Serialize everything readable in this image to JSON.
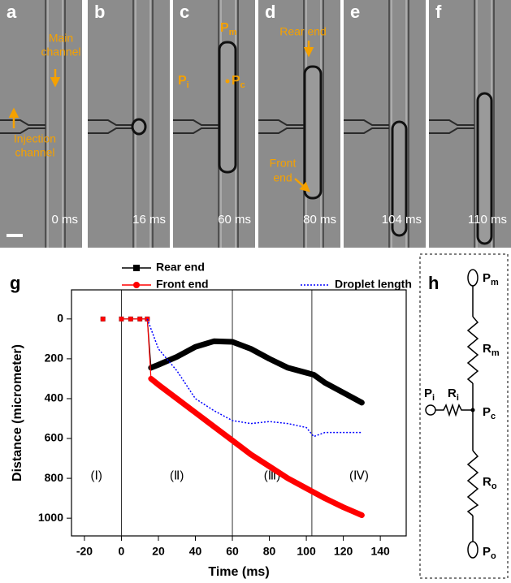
{
  "panels": [
    {
      "letter": "a",
      "time": "0 ms",
      "annotations": [
        [
          "Main",
          "channel"
        ],
        [
          "Injection",
          "channel"
        ]
      ]
    },
    {
      "letter": "b",
      "time": "16 ms"
    },
    {
      "letter": "c",
      "time": "60 ms",
      "labels": [
        {
          "main": "P",
          "sub": "m"
        },
        {
          "main": "P",
          "sub": "i"
        },
        {
          "main": "P",
          "sub": "c"
        }
      ]
    },
    {
      "letter": "d",
      "time": "80 ms",
      "annotations": [
        [
          "Rear end"
        ],
        [
          "Front",
          "end"
        ]
      ]
    },
    {
      "letter": "e",
      "time": "104 ms"
    },
    {
      "letter": "f",
      "time": "110 ms"
    }
  ],
  "chart_data": {
    "type": "line",
    "panel_letter": "g",
    "x_label": "Time (ms)",
    "y_label": "Distance (micrometer)",
    "x": [
      -10,
      -5,
      0,
      5,
      10,
      14,
      16,
      20,
      30,
      40,
      50,
      60,
      70,
      80,
      90,
      100,
      104,
      110,
      120,
      130
    ],
    "series": [
      {
        "name": "Rear end",
        "color": "#000000",
        "values": [
          0,
          null,
          0,
          0,
          0,
          0,
          245,
          230,
          190,
          140,
          112,
          115,
          150,
          200,
          245,
          270,
          280,
          320,
          370,
          420
        ]
      },
      {
        "name": "Front end",
        "color": "#ff0000",
        "values": [
          0,
          null,
          0,
          0,
          0,
          0,
          300,
          330,
          400,
          470,
          540,
          610,
          680,
          740,
          800,
          850,
          870,
          900,
          945,
          985
        ]
      },
      {
        "name": "Droplet length",
        "color": "#0000ff",
        "values": [
          null,
          null,
          null,
          null,
          null,
          0,
          50,
          150,
          260,
          400,
          460,
          510,
          525,
          515,
          525,
          545,
          590,
          570,
          570,
          570
        ]
      }
    ],
    "xlim": [
      -27,
      154
    ],
    "xticks": [
      -20,
      0,
      20,
      40,
      60,
      80,
      100,
      120,
      140
    ],
    "ylim": [
      -146,
      1089
    ],
    "yticks": [
      0,
      200,
      400,
      600,
      800,
      1000
    ],
    "y_inverted": true,
    "boundaries": [
      0,
      60,
      103
    ],
    "region_labels": [
      "(Ⅰ)",
      "(Ⅱ)",
      "(Ⅲ)",
      "(Ⅳ)"
    ]
  },
  "circuit": {
    "panel_letter": "h",
    "labels": [
      {
        "main": "P",
        "sub": "m"
      },
      {
        "main": "R",
        "sub": "m"
      },
      {
        "main": "P",
        "sub": "i"
      },
      {
        "main": "R",
        "sub": "i"
      },
      {
        "main": "P",
        "sub": "c"
      },
      {
        "main": "R",
        "sub": "o"
      },
      {
        "main": "P",
        "sub": "o"
      }
    ]
  }
}
